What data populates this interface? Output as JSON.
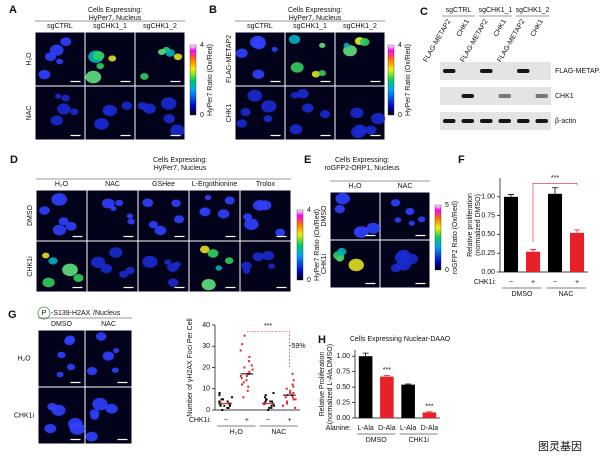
{
  "panels": {
    "A": {
      "letter": "A",
      "title": [
        "Cells Expressing:",
        "HyPer7, Nucleus"
      ],
      "columns": [
        "sgCTRL",
        "sgCHK1_1",
        "sgCHK1_2"
      ],
      "rows": [
        "H₂O",
        "NAC"
      ],
      "colorbar": {
        "label": "HyPer7 Ratio (Ox/Red)",
        "max": "4",
        "min": "0"
      }
    },
    "B": {
      "letter": "B",
      "title": [
        "Cells Expressing:",
        "HyPer7, Nucleus"
      ],
      "columns": [
        "sgCTRL",
        "sgCHK1_1",
        "sgCHK1_2"
      ],
      "rows": [
        "FLAG-METAP2",
        "CHK1"
      ],
      "colorbar": {
        "label": "HyPer7 Ratio (Ox/Red)",
        "max": "4",
        "min": "0"
      }
    },
    "C": {
      "letter": "C",
      "groups": [
        "sgCTRL",
        "sgCHK1_1",
        "sgCHK1_2"
      ],
      "lanes": [
        "FLAG-METAP2",
        "CHK1",
        "FLAG-METAP2",
        "CHK1",
        "FLAG-METAP2",
        "CHK1"
      ],
      "bands": [
        "FLAG-METAP2",
        "CHK1",
        "β-actin"
      ]
    },
    "D": {
      "letter": "D",
      "title": [
        "Cells Expressing:",
        "HyPer7, Nucleus"
      ],
      "columns": [
        "H₂O",
        "NAC",
        "GSHee",
        "L-Ergothionine",
        "Trolox"
      ],
      "rows": [
        "DMSO",
        "CHK1i"
      ],
      "colorbar": {
        "label": "HyPer7 Ratio (Ox/Red)",
        "max": "4",
        "min": "0"
      }
    },
    "E": {
      "letter": "E",
      "title": [
        "Cells Expressing:",
        "roGFP2-ORP1, Nucleus"
      ],
      "columns": [
        "H₂O",
        "NAC"
      ],
      "rows": [
        "DMSO",
        "CHK1i"
      ],
      "colorbar": {
        "label": "roGFP2 Ratio (Ox/Red)",
        "max": "5",
        "min": "0"
      }
    },
    "G": {
      "letter": "G",
      "phospho": "P",
      "stain": "-S139-H2AX",
      "counterstain": "/Nucleus",
      "columns": [
        "DMSO",
        "NAC"
      ],
      "rows": [
        "H₂O",
        "CHK1i"
      ]
    }
  },
  "chart_data": [
    {
      "letter": "F",
      "type": "bar",
      "ylabel": [
        "Relative proliferation",
        "(normalized DMSO)"
      ],
      "ylim": [
        0,
        1.25
      ],
      "yticks": [
        {
          "value": 0,
          "label": "0.00"
        },
        {
          "value": 0.25,
          "label": "0.25"
        },
        {
          "value": 0.5,
          "label": "0.50"
        },
        {
          "value": 0.75,
          "label": "0.75"
        },
        {
          "value": 1,
          "label": "1.00"
        }
      ],
      "category_label": "CHK1i:",
      "categories": [
        "−",
        "+",
        "−",
        "+"
      ],
      "groups": [
        "DMSO",
        "NAC"
      ],
      "values": [
        1.0,
        0.27,
        1.04,
        0.52
      ],
      "errors": [
        0.03,
        0.03,
        0.08,
        0.04
      ],
      "colors": [
        "#000000",
        "#e8202a",
        "#000000",
        "#e8202a"
      ],
      "annotations": [
        "***"
      ]
    },
    {
      "type": "strip",
      "ylabel": "Number of γH2AX Foci Per Cell",
      "ylim": [
        0,
        40
      ],
      "yticks": [
        0,
        10,
        20,
        30,
        40
      ],
      "category_label": "CHK1i:",
      "categories": [
        "−",
        "+",
        "−",
        "+"
      ],
      "groups": [
        "H₂O",
        "NAC"
      ],
      "colors": [
        "#000000",
        "#e8202a",
        "#000000",
        "#e8202a"
      ],
      "means": [
        3,
        17,
        3,
        7
      ],
      "points": [
        [
          0,
          1,
          1,
          2,
          2,
          2,
          3,
          3,
          3,
          3,
          4,
          4,
          4,
          5,
          5,
          6,
          7,
          8
        ],
        [
          6,
          9,
          11,
          12,
          13,
          14,
          15,
          16,
          16,
          17,
          17,
          18,
          19,
          20,
          21,
          23,
          25,
          28,
          31,
          35
        ],
        [
          0,
          1,
          1,
          2,
          2,
          3,
          3,
          3,
          4,
          4,
          4,
          5,
          5,
          6,
          7,
          8
        ],
        [
          1,
          2,
          3,
          4,
          5,
          5,
          6,
          6,
          7,
          7,
          8,
          8,
          9,
          10,
          11,
          12,
          14,
          17
        ]
      ],
      "annotations": [
        "***",
        "-59%"
      ]
    },
    {
      "letter": "H",
      "type": "bar",
      "title": "Cells Expressing Nuclear-DAAO",
      "ylabel": [
        "Relative Proliferation",
        "(normalized L-Ala,DMSO)"
      ],
      "ylim": [
        0,
        1.1
      ],
      "yticks": [
        {
          "value": 0,
          "label": "0.00"
        },
        {
          "value": 0.25,
          "label": "0.25"
        },
        {
          "value": 0.5,
          "label": "0.50"
        },
        {
          "value": 0.75,
          "label": "0.75"
        },
        {
          "value": 1,
          "label": "1.00"
        }
      ],
      "category_label": "Alanine:",
      "categories": [
        "L-Ala",
        "D-Ala",
        "L-Ala",
        "D-Ala"
      ],
      "groups": [
        "DMSO",
        "CHK1i"
      ],
      "values": [
        1.0,
        0.67,
        0.54,
        0.09
      ],
      "errors": [
        0.05,
        0.02,
        0.01,
        0.01
      ],
      "colors": [
        "#000000",
        "#e8202a",
        "#000000",
        "#e8202a"
      ],
      "annotations": [
        "***",
        "***"
      ]
    }
  ],
  "watermark": "图灵基因"
}
